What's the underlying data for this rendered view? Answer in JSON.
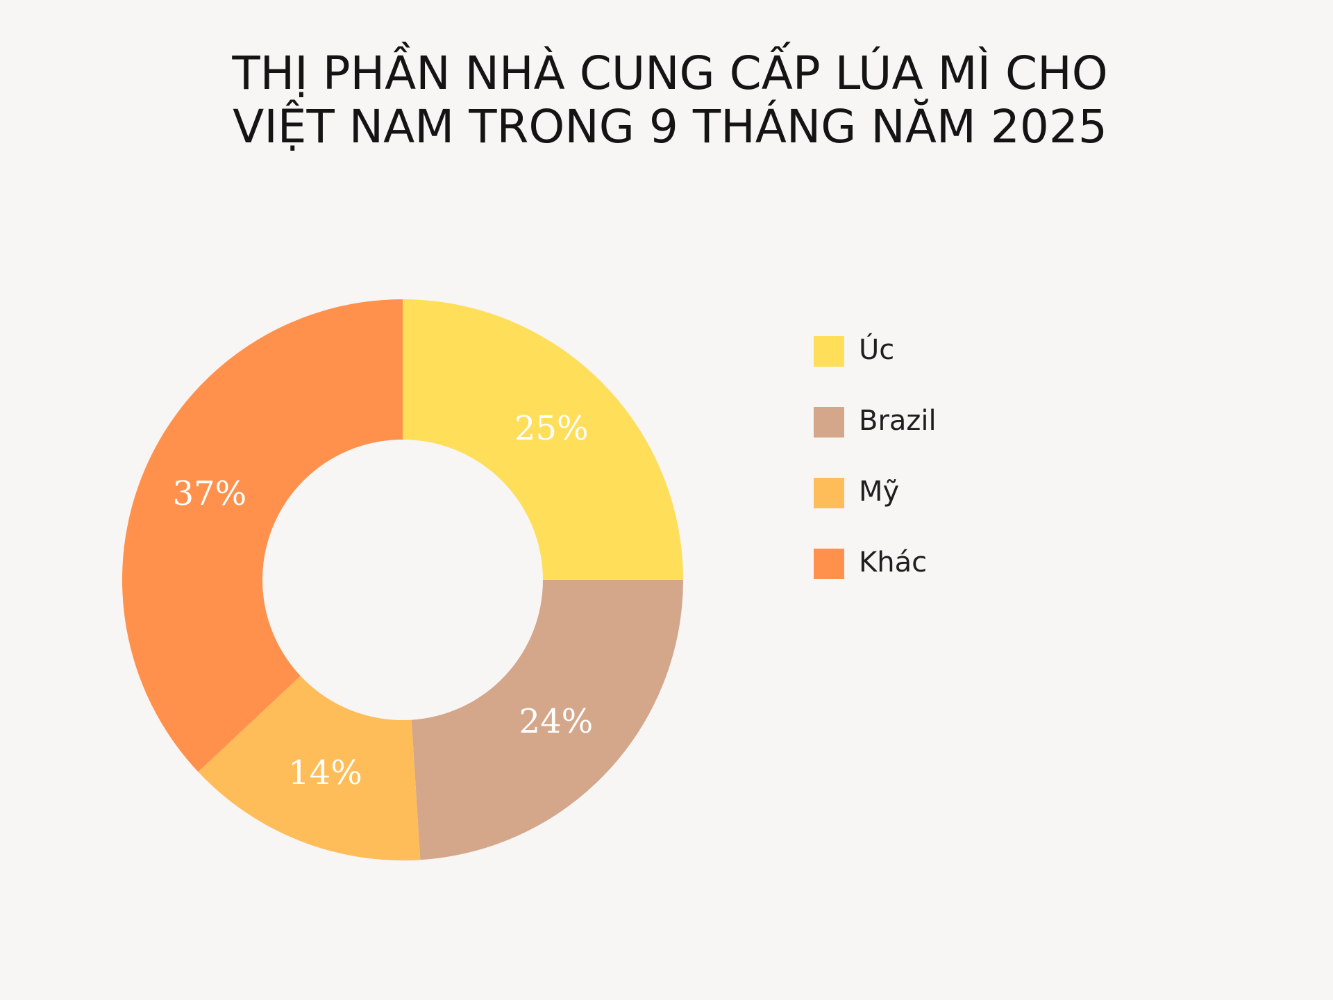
{
  "chart_data": {
    "type": "donut",
    "title": [
      "THỊ PHẦN NHÀ CUNG CẤP LÚA MÌ CHO",
      "VIỆT NAM TRONG 9 THÁNG NĂM 2025"
    ],
    "categories": [
      "Úc",
      "Brazil",
      "Mỹ",
      "Khác"
    ],
    "values": [
      25,
      24,
      14,
      37
    ],
    "value_labels": [
      "25%",
      "24%",
      "14%",
      "37%"
    ],
    "colors": [
      "#FFDE59",
      "#D4A68A",
      "#FFBD59",
      "#FF914D"
    ],
    "legend": "right"
  }
}
